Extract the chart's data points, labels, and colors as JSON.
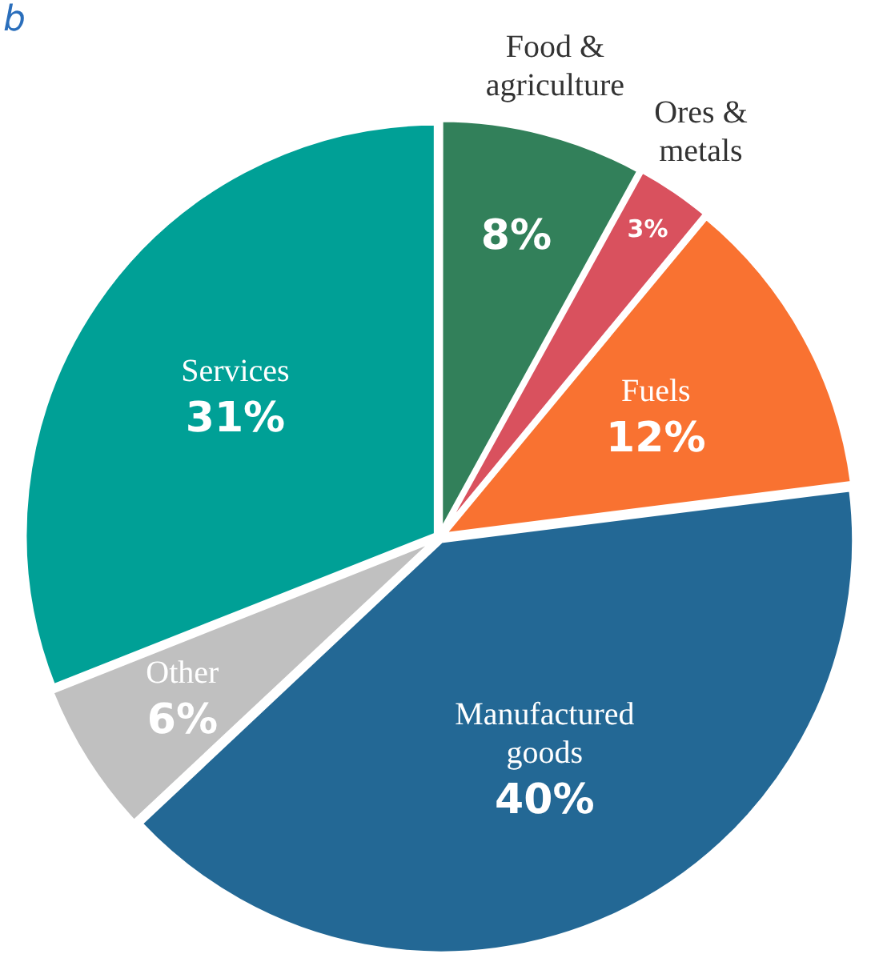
{
  "chart_data": {
    "type": "pie",
    "title": "b",
    "categories": [
      "Food & agriculture",
      "Ores & metals",
      "Fuels",
      "Manufactured goods",
      "Other",
      "Services"
    ],
    "values": [
      8,
      3,
      12,
      40,
      6,
      31
    ],
    "value_labels": [
      "8%",
      "3%",
      "12%",
      "40%",
      "6%",
      "31%"
    ],
    "colors": [
      "#32805a",
      "#d9515e",
      "#f97231",
      "#236895",
      "#c0c0c0",
      "#00a096"
    ],
    "legend": false
  }
}
